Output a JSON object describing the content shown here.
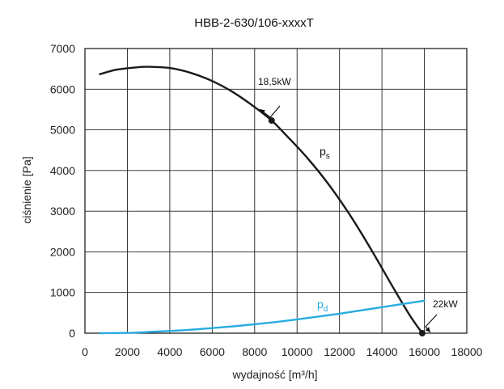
{
  "chart_data": {
    "type": "line",
    "title": "HBB-2-630/106-xxxxT",
    "xlabel": "wydajność [m³/h]",
    "ylabel": "ciśnienie [Pa]",
    "xlim": [
      0,
      18000
    ],
    "ylim": [
      0,
      7000
    ],
    "x_ticks": [
      0,
      2000,
      4000,
      6000,
      8000,
      10000,
      12000,
      14000,
      16000,
      18000
    ],
    "y_ticks": [
      0,
      1000,
      2000,
      3000,
      4000,
      5000,
      6000,
      7000
    ],
    "grid": true,
    "colors": {
      "ps": "#1a1a1a",
      "pd": "#29abe2"
    },
    "series": [
      {
        "id": "ps",
        "label_main": "p",
        "label_sub": "s",
        "points": [
          [
            700,
            6370
          ],
          [
            1500,
            6480
          ],
          [
            2500,
            6540
          ],
          [
            3000,
            6550
          ],
          [
            4000,
            6520
          ],
          [
            5000,
            6400
          ],
          [
            6000,
            6200
          ],
          [
            7000,
            5920
          ],
          [
            8000,
            5560
          ],
          [
            8800,
            5230
          ],
          [
            9500,
            4860
          ],
          [
            10500,
            4300
          ],
          [
            11500,
            3650
          ],
          [
            12500,
            2900
          ],
          [
            13500,
            2050
          ],
          [
            14500,
            1150
          ],
          [
            15300,
            450
          ],
          [
            15900,
            0
          ]
        ]
      },
      {
        "id": "pd",
        "label_main": "p",
        "label_sub": "d",
        "points": [
          [
            700,
            0
          ],
          [
            2000,
            8
          ],
          [
            3000,
            30
          ],
          [
            4000,
            55
          ],
          [
            5000,
            85
          ],
          [
            6000,
            125
          ],
          [
            7000,
            170
          ],
          [
            8000,
            220
          ],
          [
            9000,
            275
          ],
          [
            10000,
            340
          ],
          [
            11000,
            410
          ],
          [
            12000,
            480
          ],
          [
            13000,
            560
          ],
          [
            14000,
            640
          ],
          [
            15000,
            720
          ],
          [
            16000,
            800
          ]
        ]
      }
    ],
    "annotations": [
      {
        "id": "ann1",
        "text": "18,5kW",
        "x": 8800,
        "y": 5230
      },
      {
        "id": "ann2",
        "text": "22kW",
        "x": 15900,
        "y": 0
      }
    ]
  }
}
